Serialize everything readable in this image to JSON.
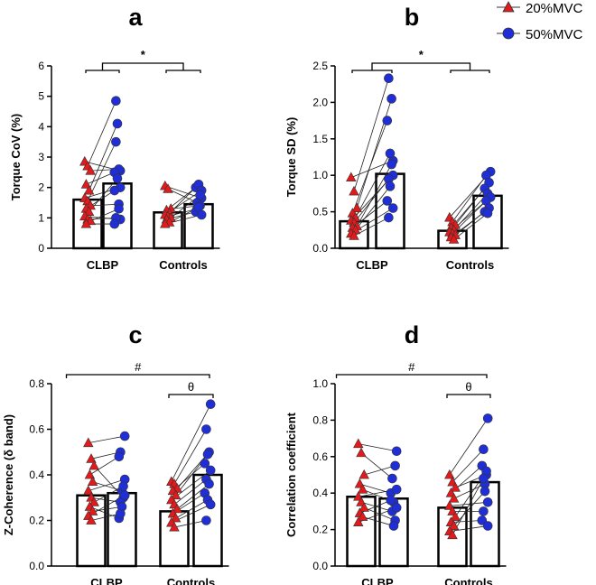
{
  "legend": {
    "entries": [
      {
        "label": "20%MVC",
        "marker": "triangle",
        "color": "#e31a1c"
      },
      {
        "label": "50%MVC",
        "marker": "circle",
        "color": "#1f2ed6"
      }
    ]
  },
  "chart_data": [
    {
      "id": "a",
      "type": "bar",
      "panel_letter": "a",
      "ylabel": "Torque CoV (%)",
      "ylim": [
        0,
        6
      ],
      "yticks": [
        "0",
        "1",
        "2",
        "3",
        "4",
        "5",
        "6"
      ],
      "categories": [
        "CLBP",
        "Controls"
      ],
      "bars": [
        {
          "group": "CLBP",
          "series": "20%MVC",
          "value": 1.6
        },
        {
          "group": "CLBP",
          "series": "50%MVC",
          "value": 2.13
        },
        {
          "group": "Controls",
          "series": "20%MVC",
          "value": 1.18
        },
        {
          "group": "Controls",
          "series": "50%MVC",
          "value": 1.45
        }
      ],
      "pairs": {
        "CLBP": [
          [
            2.85,
            2.55
          ],
          [
            2.7,
            4.85
          ],
          [
            2.55,
            2.6
          ],
          [
            2.1,
            2.5
          ],
          [
            1.9,
            4.1
          ],
          [
            1.65,
            2.0
          ],
          [
            1.55,
            3.5
          ],
          [
            1.4,
            1.45
          ],
          [
            1.3,
            1.9
          ],
          [
            1.2,
            2.3
          ],
          [
            1.05,
            0.95
          ],
          [
            0.95,
            1.0
          ],
          [
            0.9,
            1.3
          ],
          [
            0.8,
            0.8
          ]
        ],
        "Controls": [
          [
            2.05,
            1.65
          ],
          [
            1.95,
            1.5
          ],
          [
            1.3,
            1.4
          ],
          [
            1.25,
            2.0
          ],
          [
            1.15,
            2.1
          ],
          [
            1.1,
            1.9
          ],
          [
            1.05,
            1.3
          ],
          [
            1.0,
            1.75
          ],
          [
            0.95,
            1.2
          ],
          [
            0.85,
            1.35
          ],
          [
            0.8,
            1.1
          ]
        ]
      },
      "significance": {
        "type": "group",
        "symbol": "*"
      }
    },
    {
      "id": "b",
      "type": "bar",
      "panel_letter": "b",
      "ylabel": "Torque SD (%)",
      "ylim": [
        0,
        2.5
      ],
      "yticks": [
        "0.0",
        "0.5",
        "1.0",
        "1.5",
        "2.0",
        "2.5"
      ],
      "categories": [
        "CLBP",
        "Controls"
      ],
      "bars": [
        {
          "group": "CLBP",
          "series": "20%MVC",
          "value": 0.37
        },
        {
          "group": "CLBP",
          "series": "50%MVC",
          "value": 1.02
        },
        {
          "group": "Controls",
          "series": "20%MVC",
          "value": 0.24
        },
        {
          "group": "Controls",
          "series": "50%MVC",
          "value": 0.72
        }
      ],
      "pairs": {
        "CLBP": [
          [
            0.97,
            1.2
          ],
          [
            0.78,
            2.33
          ],
          [
            0.55,
            2.05
          ],
          [
            0.48,
            1.75
          ],
          [
            0.42,
            1.3
          ],
          [
            0.38,
            1.0
          ],
          [
            0.35,
            0.95
          ],
          [
            0.3,
            1.15
          ],
          [
            0.28,
            0.65
          ],
          [
            0.25,
            0.85
          ],
          [
            0.2,
            0.55
          ],
          [
            0.17,
            0.42
          ]
        ],
        "Controls": [
          [
            0.42,
            1.05
          ],
          [
            0.36,
            1.0
          ],
          [
            0.32,
            0.9
          ],
          [
            0.28,
            0.82
          ],
          [
            0.25,
            0.75
          ],
          [
            0.22,
            0.7
          ],
          [
            0.2,
            0.65
          ],
          [
            0.18,
            0.55
          ],
          [
            0.15,
            0.5
          ],
          [
            0.12,
            0.48
          ]
        ]
      },
      "significance": {
        "type": "group",
        "symbol": "*"
      }
    },
    {
      "id": "c",
      "type": "bar",
      "panel_letter": "c",
      "ylabel": "Z-Coherence (δ band)",
      "ylim": [
        0,
        0.8
      ],
      "yticks": [
        "0.0",
        "0.2",
        "0.4",
        "0.6",
        "0.8"
      ],
      "categories": [
        "CLBP",
        "Controls"
      ],
      "bars": [
        {
          "group": "CLBP",
          "series": "20%MVC",
          "value": 0.31
        },
        {
          "group": "CLBP",
          "series": "50%MVC",
          "value": 0.32
        },
        {
          "group": "Controls",
          "series": "20%MVC",
          "value": 0.24
        },
        {
          "group": "Controls",
          "series": "50%MVC",
          "value": 0.4
        }
      ],
      "pairs": {
        "CLBP": [
          [
            0.54,
            0.57
          ],
          [
            0.47,
            0.5
          ],
          [
            0.44,
            0.3
          ],
          [
            0.4,
            0.48
          ],
          [
            0.37,
            0.33
          ],
          [
            0.33,
            0.38
          ],
          [
            0.3,
            0.28
          ],
          [
            0.28,
            0.35
          ],
          [
            0.26,
            0.21
          ],
          [
            0.24,
            0.26
          ],
          [
            0.22,
            0.31
          ],
          [
            0.2,
            0.23
          ]
        ],
        "Controls": [
          [
            0.37,
            0.71
          ],
          [
            0.36,
            0.6
          ],
          [
            0.34,
            0.5
          ],
          [
            0.33,
            0.45
          ],
          [
            0.31,
            0.49
          ],
          [
            0.29,
            0.42
          ],
          [
            0.27,
            0.38
          ],
          [
            0.25,
            0.36
          ],
          [
            0.23,
            0.32
          ],
          [
            0.21,
            0.29
          ],
          [
            0.19,
            0.27
          ],
          [
            0.17,
            0.2
          ]
        ]
      },
      "significance": {
        "type": "between",
        "overall": "#",
        "within": "θ"
      }
    },
    {
      "id": "d",
      "type": "bar",
      "panel_letter": "d",
      "ylabel": "Correlation coefficient",
      "ylim": [
        0,
        1
      ],
      "yticks": [
        "0.0",
        "0.2",
        "0.4",
        "0.6",
        "0.8",
        "1.0"
      ],
      "categories": [
        "CLBP",
        "Controls"
      ],
      "bars": [
        {
          "group": "CLBP",
          "series": "20%MVC",
          "value": 0.38
        },
        {
          "group": "CLBP",
          "series": "50%MVC",
          "value": 0.37
        },
        {
          "group": "Controls",
          "series": "20%MVC",
          "value": 0.32
        },
        {
          "group": "Controls",
          "series": "50%MVC",
          "value": 0.46
        }
      ],
      "pairs": {
        "CLBP": [
          [
            0.67,
            0.63
          ],
          [
            0.62,
            0.48
          ],
          [
            0.5,
            0.55
          ],
          [
            0.45,
            0.4
          ],
          [
            0.42,
            0.35
          ],
          [
            0.38,
            0.42
          ],
          [
            0.35,
            0.3
          ],
          [
            0.32,
            0.25
          ],
          [
            0.29,
            0.36
          ],
          [
            0.27,
            0.22
          ],
          [
            0.24,
            0.32
          ]
        ],
        "Controls": [
          [
            0.5,
            0.81
          ],
          [
            0.46,
            0.64
          ],
          [
            0.43,
            0.5
          ],
          [
            0.4,
            0.55
          ],
          [
            0.37,
            0.45
          ],
          [
            0.33,
            0.35
          ],
          [
            0.3,
            0.3
          ],
          [
            0.27,
            0.52
          ],
          [
            0.24,
            0.25
          ],
          [
            0.22,
            0.41
          ],
          [
            0.19,
            0.22
          ],
          [
            0.17,
            0.48
          ]
        ]
      },
      "significance": {
        "type": "between",
        "overall": "#",
        "within": "θ"
      }
    }
  ]
}
